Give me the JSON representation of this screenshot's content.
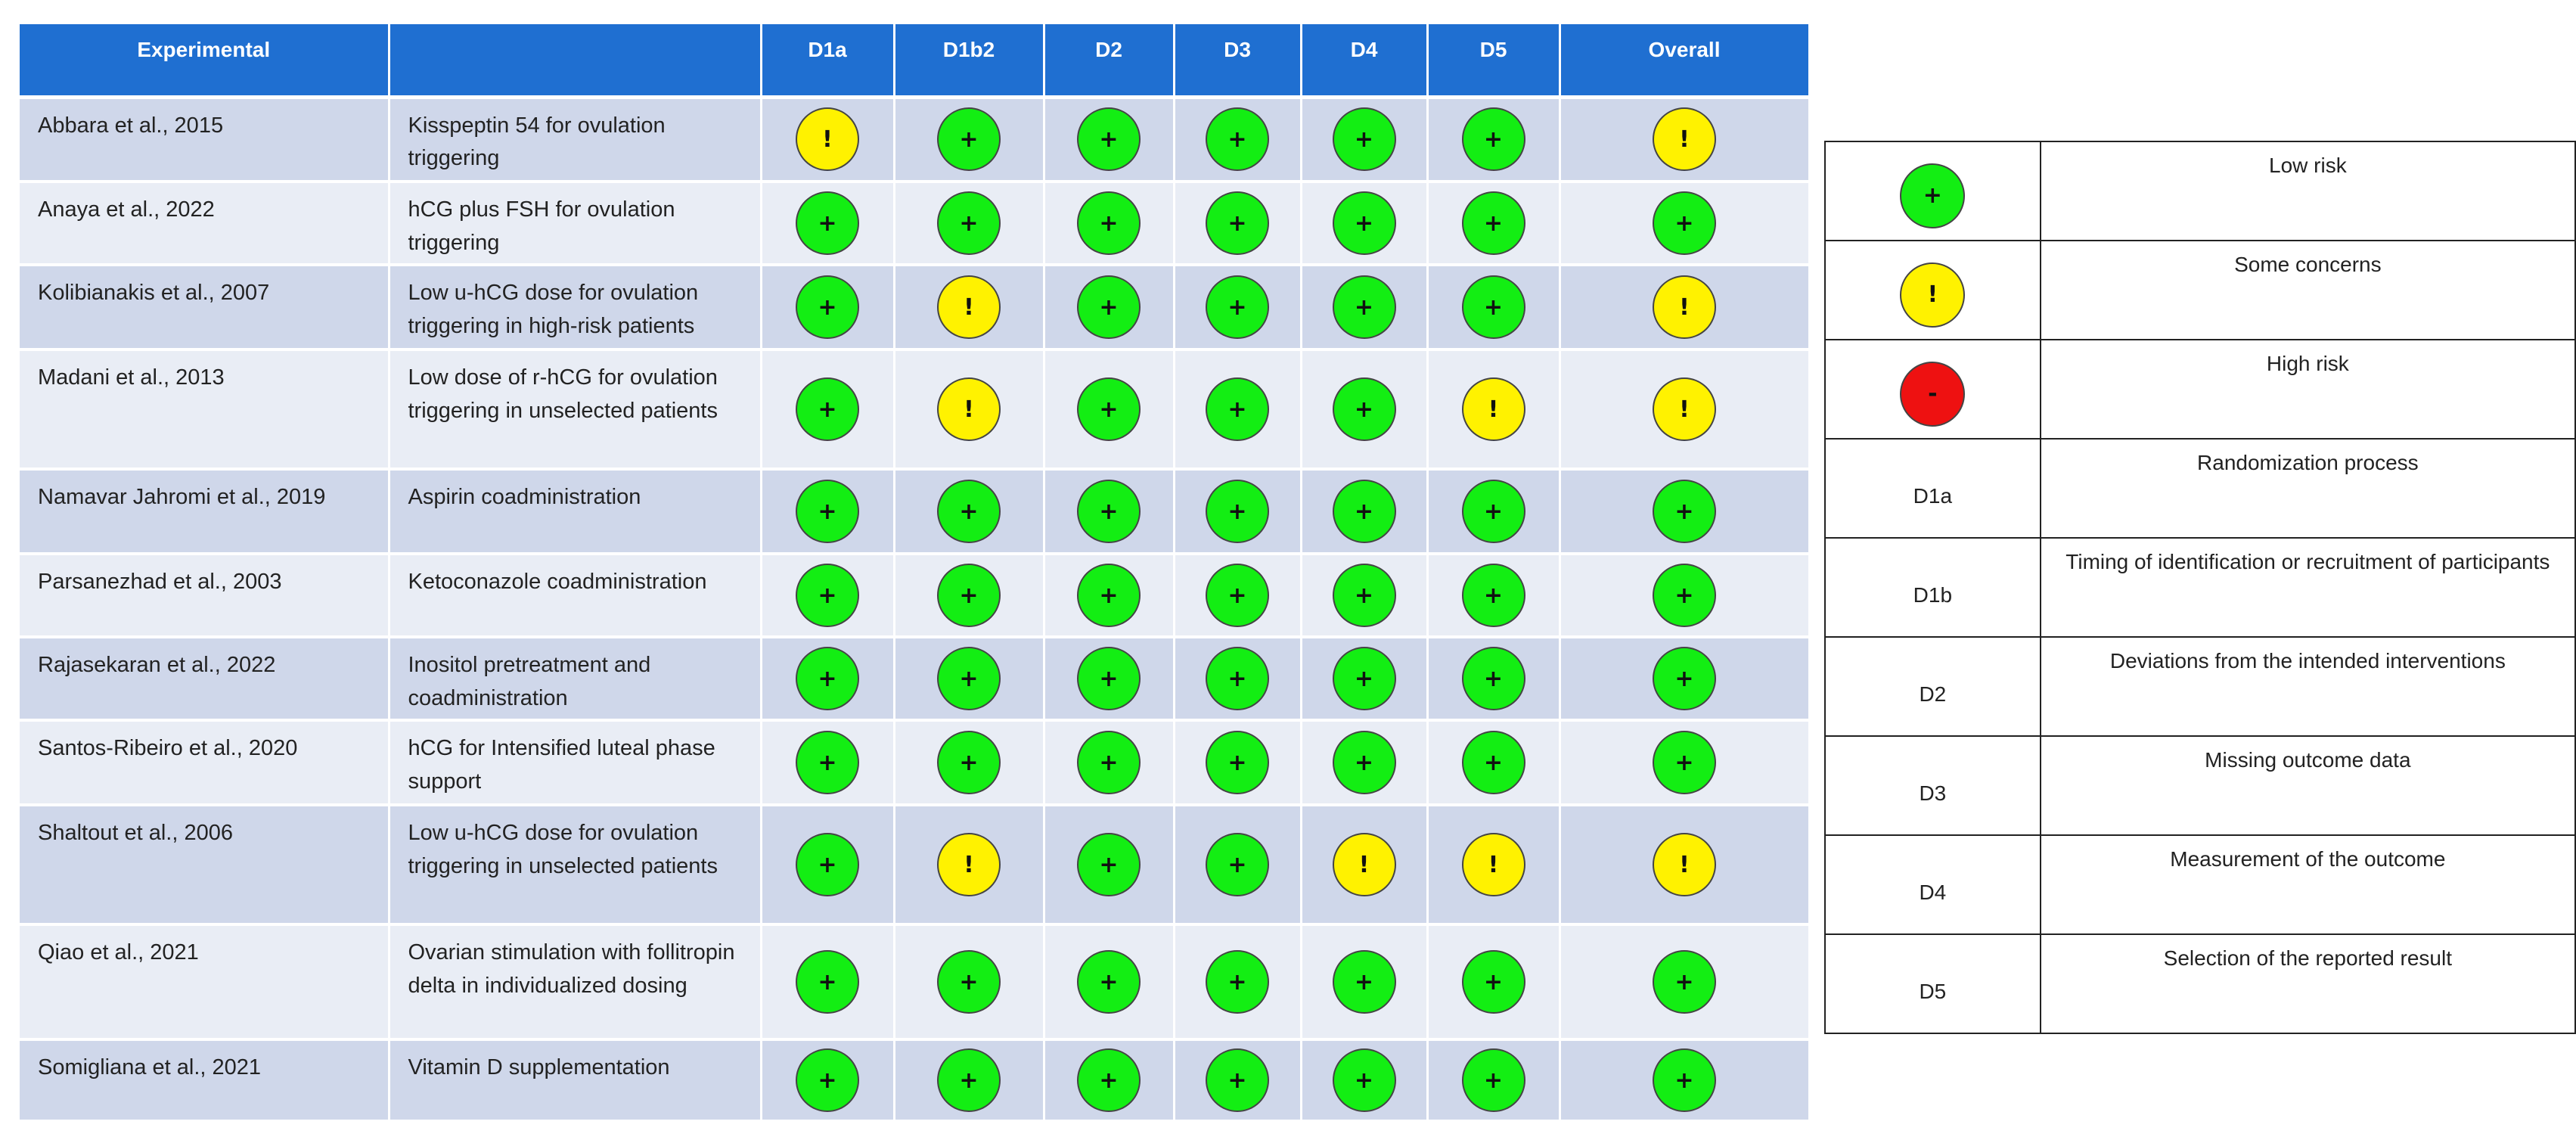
{
  "header": {
    "experimental": "Experimental",
    "intervention": "",
    "d1a": "D1a",
    "d1b2": "D1b2",
    "d2": "D2",
    "d3": "D3",
    "d4": "D4",
    "d5": "D5",
    "overall": "Overall"
  },
  "rows": [
    {
      "study": "Abbara et al., 2015",
      "intervention": "Kisspeptin 54 for ovulation triggering",
      "ratings": [
        "some",
        "low",
        "low",
        "low",
        "low",
        "low",
        "some"
      ]
    },
    {
      "study": "Anaya et al., 2022",
      "intervention": "hCG plus FSH for ovulation triggering",
      "ratings": [
        "low",
        "low",
        "low",
        "low",
        "low",
        "low",
        "low"
      ]
    },
    {
      "study": "Kolibianakis et al., 2007",
      "intervention": "Low u-hCG dose for ovulation triggering in high-risk patients",
      "ratings": [
        "low",
        "some",
        "low",
        "low",
        "low",
        "low",
        "some"
      ]
    },
    {
      "study": "Madani et al., 2013",
      "intervention": "Low dose of r-hCG for ovulation triggering in unselected patients",
      "ratings": [
        "low",
        "some",
        "low",
        "low",
        "low",
        "some",
        "some"
      ]
    },
    {
      "study": "Namavar Jahromi et al., 2019",
      "intervention": "Aspirin coadministration",
      "ratings": [
        "low",
        "low",
        "low",
        "low",
        "low",
        "low",
        "low"
      ]
    },
    {
      "study": "Parsanezhad et al., 2003",
      "intervention": "Ketoconazole coadministration",
      "ratings": [
        "low",
        "low",
        "low",
        "low",
        "low",
        "low",
        "low"
      ]
    },
    {
      "study": "Rajasekaran et al., 2022",
      "intervention": "Inositol pretreatment and coadministration",
      "ratings": [
        "low",
        "low",
        "low",
        "low",
        "low",
        "low",
        "low"
      ]
    },
    {
      "study": "Santos-Ribeiro et al., 2020",
      "intervention": "hCG for Intensified luteal phase support",
      "ratings": [
        "low",
        "low",
        "low",
        "low",
        "low",
        "low",
        "low"
      ]
    },
    {
      "study": "Shaltout et al., 2006",
      "intervention": "Low u-hCG dose for ovulation triggering in unselected patients",
      "ratings": [
        "low",
        "some",
        "low",
        "low",
        "some",
        "some",
        "some"
      ]
    },
    {
      "study": "Qiao et al., 2021",
      "intervention": "Ovarian stimulation with follitropin delta in individualized dosing",
      "ratings": [
        "low",
        "low",
        "low",
        "low",
        "low",
        "low",
        "low"
      ]
    },
    {
      "study": "Somigliana et al., 2021",
      "intervention": "Vitamin D supplementation",
      "ratings": [
        "low",
        "low",
        "low",
        "low",
        "low",
        "low",
        "low"
      ]
    }
  ],
  "symbols": {
    "low": "+",
    "some": "!",
    "high": "-"
  },
  "colors": {
    "header": "#1f6fd1",
    "low": "#13ee13",
    "some": "#fff200",
    "high": "#ee1111",
    "row_dark": "#cfd7ea",
    "row_light": "#e9edf5"
  },
  "legend": [
    {
      "key_type": "symbol",
      "rating": "low",
      "key": "",
      "description": "Low risk"
    },
    {
      "key_type": "symbol",
      "rating": "some",
      "key": "",
      "description": "Some concerns"
    },
    {
      "key_type": "symbol",
      "rating": "high",
      "key": "",
      "description": "High risk"
    },
    {
      "key_type": "text",
      "rating": "",
      "key": "D1a",
      "description": "Randomization process"
    },
    {
      "key_type": "text",
      "rating": "",
      "key": "D1b",
      "description": "Timing of identification or recruitment of participants"
    },
    {
      "key_type": "text",
      "rating": "",
      "key": "D2",
      "description": "Deviations from the intended interventions"
    },
    {
      "key_type": "text",
      "rating": "",
      "key": "D3",
      "description": "Missing outcome data"
    },
    {
      "key_type": "text",
      "rating": "",
      "key": "D4",
      "description": "Measurement of the outcome"
    },
    {
      "key_type": "text",
      "rating": "",
      "key": "D5",
      "description": "Selection of the reported result"
    }
  ]
}
